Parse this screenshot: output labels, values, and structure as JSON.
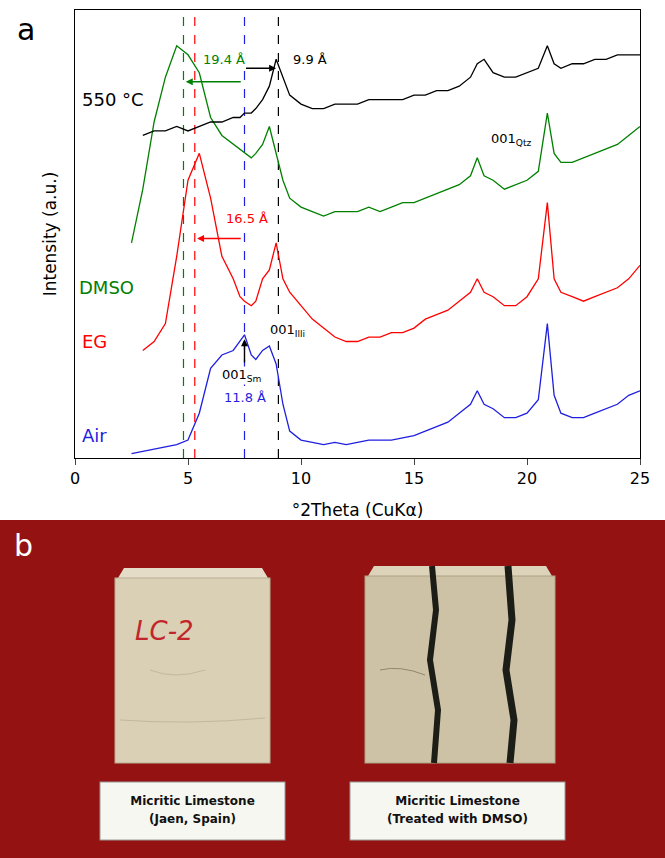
{
  "chart_data": {
    "type": "line",
    "panel_label": "a",
    "x_label": "°2Theta (CuKα)",
    "y_label": "Intensity (a.u.)",
    "xlim": [
      0,
      25
    ],
    "xticks": [
      0,
      5,
      10,
      15,
      20,
      25
    ],
    "ylim": [
      0,
      100
    ],
    "tick_labels": "x",
    "grid": false,
    "x": [
      2.5,
      3,
      3.5,
      4,
      4.5,
      5,
      5.5,
      6,
      6.5,
      7,
      7.3,
      7.5,
      7.8,
      8,
      8.3,
      8.6,
      8.9,
      9.2,
      9.5,
      10,
      10.5,
      11,
      11.5,
      12,
      12.5,
      13,
      13.5,
      14,
      14.5,
      15,
      15.5,
      16,
      16.5,
      17,
      17.5,
      17.8,
      18.1,
      18.5,
      19,
      19.5,
      20,
      20.5,
      20.9,
      21.2,
      21.5,
      22,
      22.5,
      23,
      23.5,
      24,
      24.5,
      25
    ],
    "series": [
      {
        "name": "Air",
        "color": "#1f1fe0",
        "label_x": 0.2,
        "label_y": 5,
        "values": [
          1,
          1.5,
          2,
          2.5,
          3,
          4,
          10,
          20,
          23,
          24,
          26,
          27.5,
          23,
          22,
          24,
          25,
          21,
          12,
          6,
          4,
          3.5,
          3,
          3.5,
          3,
          3.5,
          4,
          4,
          4,
          4.5,
          5,
          6,
          7,
          8,
          10,
          12,
          15,
          12,
          11,
          9,
          9,
          10,
          13,
          30,
          14,
          10,
          9,
          9,
          10,
          11,
          12,
          14,
          15
        ]
      },
      {
        "name": "EG",
        "color": "#ff0000",
        "label_x": 0.2,
        "label_y": 26,
        "values": [
          null,
          24,
          26,
          30,
          45,
          62,
          68,
          58,
          45,
          40,
          36,
          35,
          34,
          35,
          40,
          42,
          48,
          40,
          37,
          34,
          31,
          29,
          27,
          26,
          26,
          27,
          27,
          28,
          28,
          29,
          31,
          32,
          33,
          35,
          37,
          40,
          37,
          36,
          34,
          34,
          36,
          40,
          57,
          40,
          37,
          36,
          35,
          36,
          37,
          38,
          40,
          43
        ]
      },
      {
        "name": "DMSO",
        "color": "#008000",
        "label_x": 0.1,
        "label_y": 38,
        "values": [
          48,
          60,
          75,
          85,
          92,
          90,
          86,
          76,
          72,
          70,
          69,
          68,
          67,
          68,
          70,
          74,
          68,
          62,
          58,
          56,
          55,
          54,
          55,
          55,
          55,
          56,
          55,
          56,
          57,
          57,
          58,
          59,
          60,
          61,
          63,
          67,
          63,
          62,
          60,
          61,
          62,
          64,
          77,
          68,
          66,
          66,
          67,
          68,
          69,
          70,
          72,
          74
        ]
      },
      {
        "name": "550 °C",
        "color": "#000000",
        "label_x": 0.2,
        "label_y": 80,
        "values": [
          null,
          72,
          73,
          73,
          74,
          73,
          74,
          75,
          75,
          76,
          76,
          77,
          77,
          78,
          80,
          83,
          89,
          85,
          81,
          79,
          78,
          78,
          79,
          79,
          79,
          80,
          80,
          80,
          80,
          81,
          81,
          82,
          82,
          83,
          85,
          88,
          89,
          86,
          85,
          85,
          86,
          87,
          92,
          88,
          87,
          88,
          88,
          89,
          89,
          90,
          90,
          90
        ]
      }
    ],
    "vlines": [
      {
        "x": 4.8,
        "color": "#008000"
      },
      {
        "x": 5.3,
        "color": "#ff0000"
      },
      {
        "x": 7.5,
        "color": "#1f1fe0"
      },
      {
        "x": 9.0,
        "color": "#000000"
      }
    ],
    "annotations": [
      {
        "text": "9.9 Å",
        "x": 10.4,
        "y": 89,
        "color": "#000000"
      },
      {
        "text": "19.4 Å",
        "x": 6.6,
        "y": 89,
        "color": "#008000"
      },
      {
        "text": "16.5 Å",
        "x": 7.6,
        "y": 53.5,
        "color": "#ff0000"
      },
      {
        "text": "001",
        "subscript": "Qtz",
        "x": 19.3,
        "y": 71,
        "color": "#000000"
      },
      {
        "text": "001",
        "subscript": "Illi",
        "x": 9.4,
        "y": 28.5,
        "color": "#000000"
      },
      {
        "text": "001",
        "subscript": "Sm",
        "x": 7.4,
        "y": 18.5,
        "color": "#000000"
      },
      {
        "text": "11.8 Å",
        "x": 7.5,
        "y": 13.5,
        "color": "#1f1fe0"
      }
    ],
    "arrows": [
      {
        "from": [
          7.5,
          87
        ],
        "to": [
          8.9,
          87
        ],
        "color": "#000000"
      },
      {
        "from": [
          7.4,
          84
        ],
        "to": [
          4.9,
          84
        ],
        "color": "#008000"
      },
      {
        "from": [
          7.4,
          49
        ],
        "to": [
          5.4,
          49
        ],
        "color": "#ff0000"
      },
      {
        "from": [
          7.5,
          21
        ],
        "to": [
          7.5,
          26.5
        ],
        "color": "#000000"
      }
    ]
  },
  "photo": {
    "panel_label": "b",
    "sample_mark": "LC-2",
    "captions": [
      [
        "Micritic Limestone",
        "(Jaen, Spain)"
      ],
      [
        "Micritic Limestone",
        "(Treated with DMSO)"
      ]
    ]
  }
}
